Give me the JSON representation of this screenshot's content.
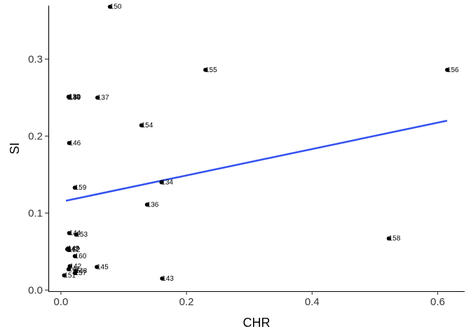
{
  "chart_data": {
    "type": "scatter",
    "title": "",
    "xlabel": "CHR",
    "ylabel": "SI",
    "xlim": [
      -0.02,
      0.643
    ],
    "ylim": [
      -0.0015,
      0.3695
    ],
    "x_ticks": [
      0.0,
      0.2,
      0.4,
      0.6
    ],
    "x_tick_labels": [
      "0.0",
      "0.2",
      "0.4",
      "0.6"
    ],
    "y_ticks": [
      0.0,
      0.1,
      0.2,
      0.3
    ],
    "y_tick_labels": [
      "0.0",
      "0.1",
      "0.2",
      "0.3"
    ],
    "grid": false,
    "legend": "none",
    "point_color": "#000000",
    "fit_line": {
      "color": "#3553f0",
      "x": [
        0.008,
        0.615
      ],
      "y": [
        0.116,
        0.22
      ]
    },
    "points": [
      {
        "label": "150",
        "x": 0.078,
        "y": 0.368
      },
      {
        "label": "155",
        "x": 0.23,
        "y": 0.286
      },
      {
        "label": "156",
        "x": 0.615,
        "y": 0.286
      },
      {
        "label": "138",
        "x": 0.012,
        "y": 0.251
      },
      {
        "label": "139",
        "x": 0.013,
        "y": 0.25
      },
      {
        "label": "140",
        "x": 0.013,
        "y": 0.251
      },
      {
        "label": "137",
        "x": 0.058,
        "y": 0.25
      },
      {
        "label": "154",
        "x": 0.128,
        "y": 0.214
      },
      {
        "label": "146",
        "x": 0.013,
        "y": 0.191
      },
      {
        "label": "134",
        "x": 0.16,
        "y": 0.14
      },
      {
        "label": "159",
        "x": 0.022,
        "y": 0.133
      },
      {
        "label": "136",
        "x": 0.137,
        "y": 0.111
      },
      {
        "label": "144",
        "x": 0.013,
        "y": 0.074
      },
      {
        "label": "153",
        "x": 0.024,
        "y": 0.072
      },
      {
        "label": "158",
        "x": 0.522,
        "y": 0.067
      },
      {
        "label": "147",
        "x": 0.01,
        "y": 0.053
      },
      {
        "label": "149",
        "x": 0.011,
        "y": 0.054
      },
      {
        "label": "152",
        "x": 0.012,
        "y": 0.052
      },
      {
        "label": "160",
        "x": 0.022,
        "y": 0.044
      },
      {
        "label": "142",
        "x": 0.014,
        "y": 0.031
      },
      {
        "label": "145",
        "x": 0.057,
        "y": 0.03
      },
      {
        "label": "141",
        "x": 0.012,
        "y": 0.027
      },
      {
        "label": "148",
        "x": 0.023,
        "y": 0.025
      },
      {
        "label": "157",
        "x": 0.022,
        "y": 0.022
      },
      {
        "label": "151",
        "x": 0.005,
        "y": 0.019
      },
      {
        "label": "143",
        "x": 0.161,
        "y": 0.015
      }
    ]
  }
}
